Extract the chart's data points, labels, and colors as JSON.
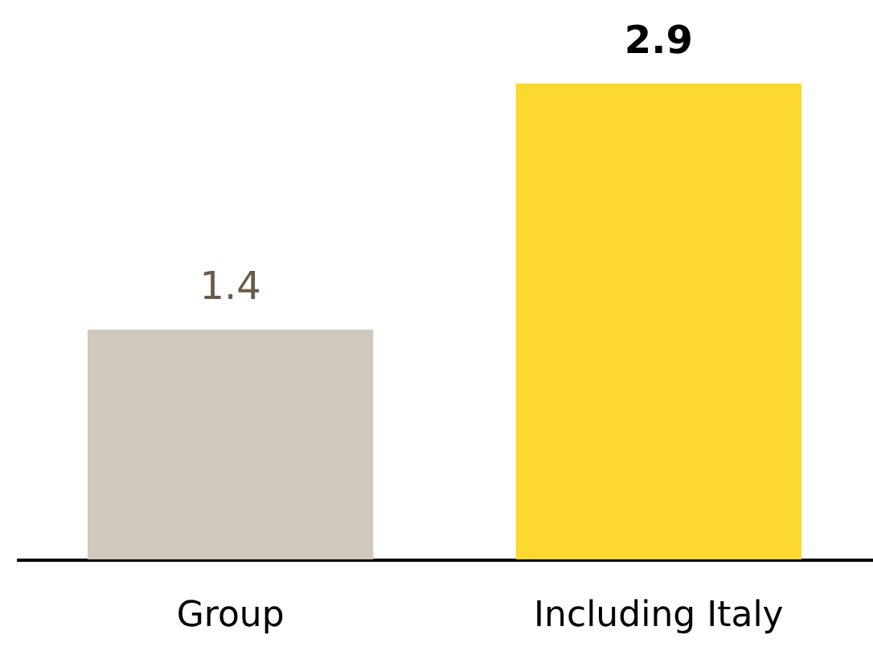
{
  "chart_data": {
    "type": "bar",
    "categories": [
      "Group",
      "Including Italy"
    ],
    "values": [
      1.4,
      2.9
    ],
    "colors": [
      "#d0c8bc",
      "#fdd82f"
    ],
    "data_labels": true
  }
}
